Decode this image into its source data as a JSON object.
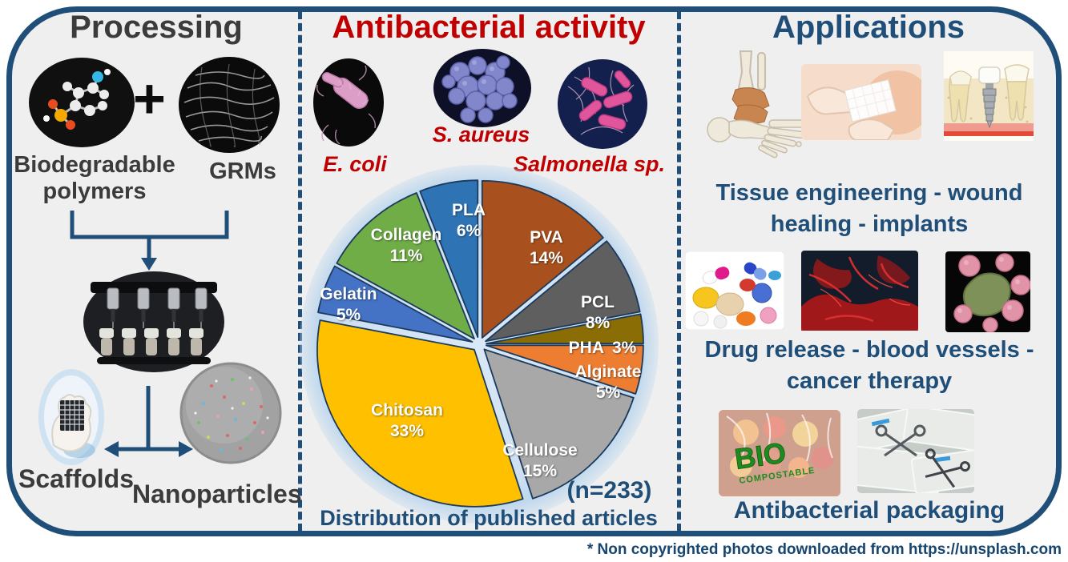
{
  "figure": {
    "footnote": "* Non copyrighted photos downloaded from https://unsplash.com"
  },
  "processing": {
    "title": "Processing",
    "plus": "+",
    "polymers_label": "Biodegradable\npolymers",
    "grms_label": "GRMs",
    "scaffolds_label": "Scaffolds",
    "nanoparticles_label": "Nanoparticles",
    "photos": [
      "polymer-molecule-photo",
      "graphene-grm-photo",
      "bioprinter-photo",
      "scaffold-photo",
      "nanoparticles-photo"
    ]
  },
  "antibacterial": {
    "title": "Antibacterial activity",
    "bacteria": [
      {
        "label": "E. coli"
      },
      {
        "label": "S. aureus"
      },
      {
        "label": "Salmonella sp."
      }
    ],
    "n_label": "(n=233)",
    "caption": "Distribution of published articles"
  },
  "chart_data": {
    "type": "pie",
    "title": "Distribution of published articles",
    "sample_size": 233,
    "annotation": "(n=233)",
    "start_angle_deg_from_top": 0,
    "direction": "clockwise",
    "exploded": true,
    "slices": [
      {
        "label": "PVA",
        "value": 14,
        "pct_label": "14%",
        "color": "#A9511E"
      },
      {
        "label": "PCL",
        "value": 8,
        "pct_label": "8%",
        "color": "#5F5F5F"
      },
      {
        "label": "PHA",
        "value": 3,
        "pct_label": "3%",
        "color": "#8A6D05"
      },
      {
        "label": "Alginate",
        "value": 5,
        "pct_label": "5%",
        "color": "#ED7D31"
      },
      {
        "label": "Cellulose",
        "value": 15,
        "pct_label": "15%",
        "color": "#A8A8A8"
      },
      {
        "label": "Chitosan",
        "value": 33,
        "pct_label": "33%",
        "color": "#FFC000"
      },
      {
        "label": "Gelatin",
        "value": 5,
        "pct_label": "5%",
        "color": "#4472C4"
      },
      {
        "label": "Collagen",
        "value": 11,
        "pct_label": "11%",
        "color": "#70AD47"
      },
      {
        "label": "PLA",
        "value": 6,
        "pct_label": "6%",
        "color": "#2E74B5"
      }
    ]
  },
  "applications": {
    "title": "Applications",
    "caption_tissue": "Tissue engineering - wound\nhealing - implants",
    "caption_drug": "Drug release - blood vessels -\ncancer therapy",
    "caption_packaging": "Antibacterial packaging",
    "biobag_text_bio": "BIO",
    "biobag_text_compostable": "COMPOSTABLE",
    "photos": [
      "foot-skeleton-photo",
      "wound-dressing-photo",
      "dental-implant-photo",
      "pills-photo",
      "blood-vessels-photo",
      "cancer-cells-photo",
      "bio-compostable-bag-photo",
      "sterile-instruments-photo"
    ]
  },
  "colors": {
    "border_blue": "#1F4E79",
    "title_red": "#C00000",
    "title_charcoal": "#3B3B3B",
    "panel_bg": "#EFEFEF",
    "pie_glow": "#BDD7EE"
  }
}
